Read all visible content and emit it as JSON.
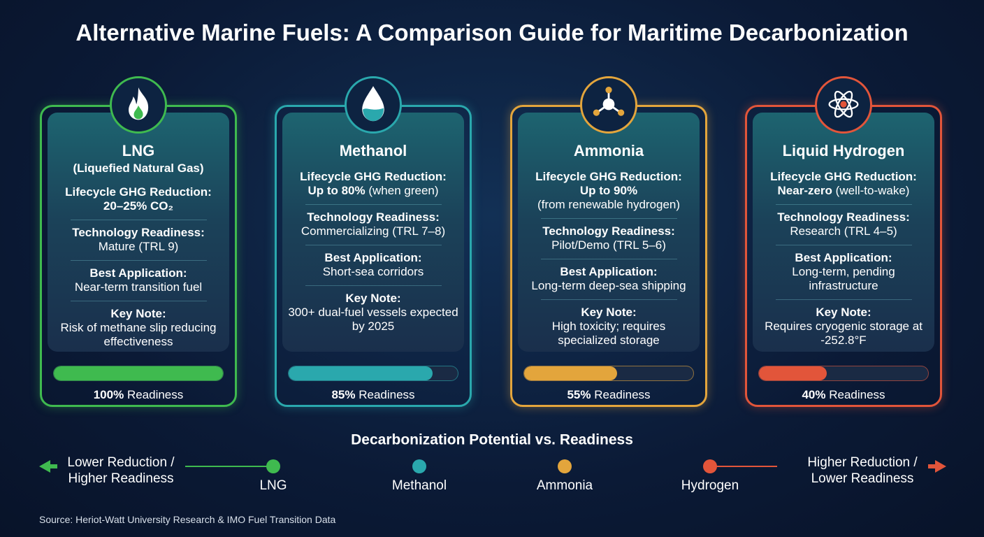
{
  "title": "Alternative Marine Fuels: A Comparison Guide for Maritime Decarbonization",
  "cards": [
    {
      "name": "LNG",
      "subtitle": "(Liquefied Natural Gas)",
      "color": "#3fba4f",
      "icon": "flame",
      "sections": [
        {
          "heading": "Lifecycle GHG Reduction:",
          "bold": "20–25% CO₂",
          "text": null
        },
        {
          "heading": "Technology Readiness:",
          "bold": null,
          "text": "Mature (TRL 9)"
        },
        {
          "heading": "Best Application:",
          "bold": null,
          "text": "Near-term transition fuel"
        },
        {
          "heading": "Key Note:",
          "bold": null,
          "text": "Risk of methane slip reducing effectiveness"
        }
      ],
      "readiness": 100,
      "readiness_label": "100%",
      "readiness_caption": "Readiness"
    },
    {
      "name": "Methanol",
      "subtitle": null,
      "color": "#2aa8ad",
      "icon": "drop",
      "sections": [
        {
          "heading": "Lifecycle GHG Reduction:",
          "bold": "Up to 80%",
          "text": "(when green)"
        },
        {
          "heading": "Technology Readiness:",
          "bold": null,
          "text": "Commercializing (TRL 7–8)"
        },
        {
          "heading": "Best Application:",
          "bold": null,
          "text": "Short-sea corridors"
        },
        {
          "heading": "Key Note:",
          "bold": null,
          "text": "300+ dual-fuel vessels expected by 2025"
        }
      ],
      "readiness": 85,
      "readiness_label": "85%",
      "readiness_caption": "Readiness"
    },
    {
      "name": "Ammonia",
      "subtitle": null,
      "color": "#e3a53c",
      "icon": "molecule",
      "sections": [
        {
          "heading": "Lifecycle GHG Reduction:",
          "bold": "Up to 90%",
          "text": "(from renewable hydrogen)"
        },
        {
          "heading": "Technology Readiness:",
          "bold": null,
          "text": "Pilot/Demo (TRL 5–6)"
        },
        {
          "heading": "Best Application:",
          "bold": null,
          "text": "Long-term deep-sea shipping"
        },
        {
          "heading": "Key Note:",
          "bold": null,
          "text": "High toxicity; requires specialized storage"
        }
      ],
      "readiness": 55,
      "readiness_label": "55%",
      "readiness_caption": "Readiness"
    },
    {
      "name": "Liquid Hydrogen",
      "subtitle": null,
      "color": "#e2553a",
      "icon": "atom",
      "sections": [
        {
          "heading": "Lifecycle GHG Reduction:",
          "bold": "Near-zero",
          "text": "(well-to-wake)"
        },
        {
          "heading": "Technology Readiness:",
          "bold": null,
          "text": "Research (TRL 4–5)"
        },
        {
          "heading": "Best Application:",
          "bold": null,
          "text": "Long-term, pending infrastructure"
        },
        {
          "heading": "Key Note:",
          "bold": null,
          "text": "Requires cryogenic storage at -252.8°F"
        }
      ],
      "readiness": 40,
      "readiness_label": "40%",
      "readiness_caption": "Readiness"
    }
  ],
  "scale": {
    "title": "Decarbonization Potential vs. Readiness",
    "left": [
      "Lower Reduction /",
      "Higher Readiness"
    ],
    "right": [
      "Higher Reduction /",
      "Lower Readiness"
    ],
    "points": [
      "LNG",
      "Methanol",
      "Ammonia",
      "Hydrogen"
    ]
  },
  "source": "Source: Heriot-Watt University Research & IMO Fuel Transition Data"
}
